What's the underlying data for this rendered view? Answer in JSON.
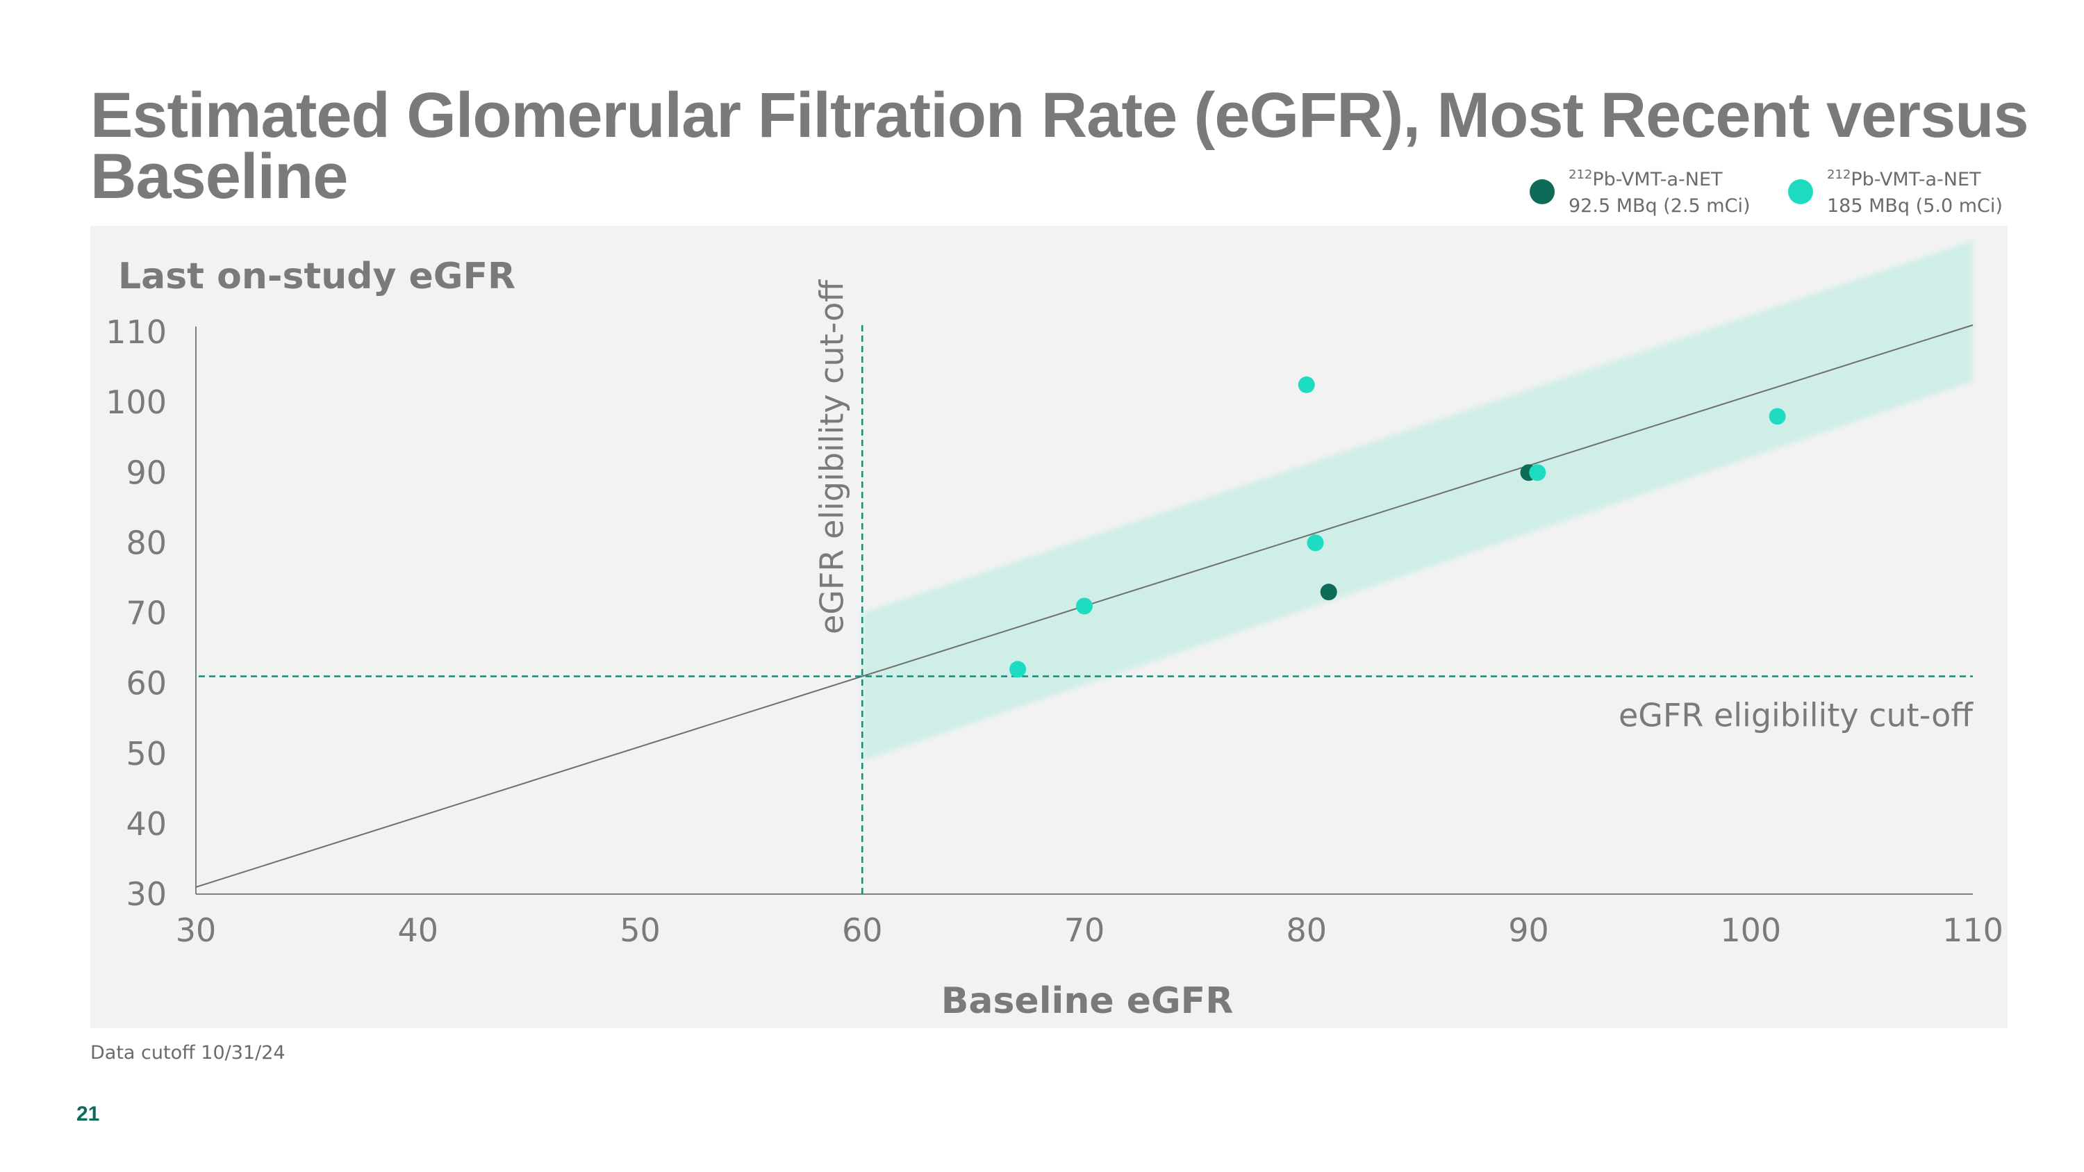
{
  "slide": {
    "title": "Estimated Glomerular Filtration Rate (eGFR), Most Recent versus Baseline",
    "footnote": "Data cutoff 10/31/24",
    "page_number": "21"
  },
  "legend": [
    {
      "superscript": "212",
      "name": "Pb-VMT-a-NET",
      "dose": "92.5 MBq (2.5 mCi)",
      "color": "#0d6b58"
    },
    {
      "superscript": "212",
      "name": "Pb-VMT-a-NET",
      "dose": "185 MBq (5.0 mCi)",
      "color": "#1edcc1"
    }
  ],
  "chart_data": {
    "type": "scatter",
    "xlabel": "Baseline eGFR",
    "ylabel": "Last on-study eGFR",
    "xlim": [
      30,
      110
    ],
    "ylim": [
      30,
      110
    ],
    "x_ticks": [
      "30",
      "40",
      "50",
      "60",
      "70",
      "80",
      "90",
      "100",
      "110"
    ],
    "y_ticks": [
      "110",
      "100",
      "90",
      "80",
      "70",
      "60",
      "50",
      "40",
      "30"
    ],
    "grid": false,
    "legend_position": "top-right",
    "reference_line": {
      "description": "identity",
      "from": [
        30,
        31
      ],
      "to": [
        110,
        111
      ]
    },
    "band": {
      "x_range": [
        60,
        110
      ],
      "lower_at_start": 49,
      "upper_at_start": 70,
      "lower_at_end": 103,
      "upper_at_end": 123
    },
    "cutoff_lines": [
      {
        "axis": "x",
        "value": 60,
        "label": "eGFR eligibility cut-off"
      },
      {
        "axis": "y",
        "value": 61,
        "label": "eGFR eligibility cut-off"
      }
    ],
    "series": [
      {
        "name": "212Pb-VMT-a-NET 92.5 MBq (2.5 mCi)",
        "color": "#0d6b58",
        "points": [
          {
            "x": 90,
            "y": 90
          },
          {
            "x": 81,
            "y": 73
          }
        ]
      },
      {
        "name": "212Pb-VMT-a-NET 185 MBq (5.0 mCi)",
        "color": "#1edcc1",
        "points": [
          {
            "x": 67,
            "y": 62
          },
          {
            "x": 70,
            "y": 71
          },
          {
            "x": 80,
            "y": 102.5
          },
          {
            "x": 80.4,
            "y": 80
          },
          {
            "x": 90.4,
            "y": 90
          },
          {
            "x": 101.2,
            "y": 98
          }
        ]
      }
    ]
  }
}
